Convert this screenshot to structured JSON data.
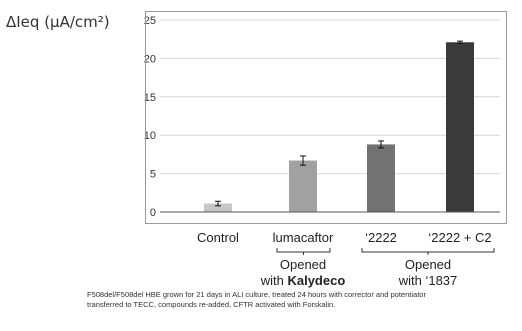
{
  "chart_data": {
    "type": "bar",
    "ylabel": "ΔIeq (μA/cm²)",
    "categories": [
      "Control",
      "lumacaftor",
      "‘2222",
      "‘2222 + C2"
    ],
    "values": [
      1.1,
      6.7,
      8.8,
      22.1
    ],
    "errors": [
      0.3,
      0.6,
      0.45,
      0.15
    ],
    "bar_colors": [
      "#c6c6c6",
      "#a1a1a1",
      "#727272",
      "#3a3a3a"
    ],
    "ylim": [
      0,
      25
    ],
    "yticks": [
      0,
      5,
      10,
      15,
      20,
      25
    ],
    "grid": true,
    "legend": "none"
  },
  "groups": [
    {
      "line1": "Opened",
      "line2_prefix": "with ",
      "line2_bold": "Kalydeco"
    },
    {
      "line1": "Opened",
      "line2_prefix": "with ‘1837",
      "line2_bold": ""
    }
  ],
  "footnote": {
    "line1": "F508del/F508del HBE grown for 21 days in ALI culture, treated 24 hours with corrector and potentiator",
    "line2": "transferred to TECC, compounds re-added, CFTR activated with Forskalin."
  }
}
